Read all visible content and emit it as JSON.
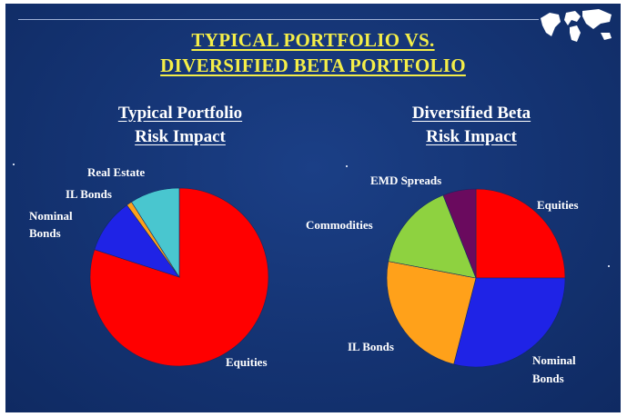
{
  "title_line1": "TYPICAL PORTFOLIO VS.",
  "title_line2": "DIVERSIFIED BETA PORTFOLIO",
  "left_title_line1": "Typical Portfolio",
  "left_title_line2": "Risk Impact",
  "right_title_line1": "Diversified Beta",
  "right_title_line2": "Risk Impact",
  "colors": {
    "background": "#143372",
    "title": "#f4ee48",
    "red": "#ff0000",
    "blue": "#1f23e6",
    "orange": "#ffa11a",
    "green": "#8ed240",
    "purple": "#6a0a5e",
    "cyan": "#49c6cf"
  },
  "icons": {
    "top_right": "world-map-icon"
  },
  "chart_data": [
    {
      "type": "pie",
      "title": "Typical Portfolio Risk Impact",
      "start_angle_deg": 0,
      "direction": "clockwise",
      "slices": [
        {
          "label": "Equities",
          "value": 80,
          "color": "#ff0000"
        },
        {
          "label": "Nominal Bonds",
          "value": 10,
          "color": "#1f23e6"
        },
        {
          "label": "IL Bonds",
          "value": 1,
          "color": "#ffa11a"
        },
        {
          "label": "Real Estate",
          "value": 9,
          "color": "#49c6cf"
        }
      ]
    },
    {
      "type": "pie",
      "title": "Diversified Beta Risk Impact",
      "start_angle_deg": 0,
      "direction": "clockwise",
      "slices": [
        {
          "label": "Equities",
          "value": 25,
          "color": "#ff0000"
        },
        {
          "label": "Nominal Bonds",
          "value": 29,
          "color": "#1f23e6"
        },
        {
          "label": "IL Bonds",
          "value": 24,
          "color": "#ffa11a"
        },
        {
          "label": "Commodities",
          "value": 16,
          "color": "#8ed240"
        },
        {
          "label": "EMD Spreads",
          "value": 6,
          "color": "#6a0a5e"
        }
      ]
    }
  ]
}
